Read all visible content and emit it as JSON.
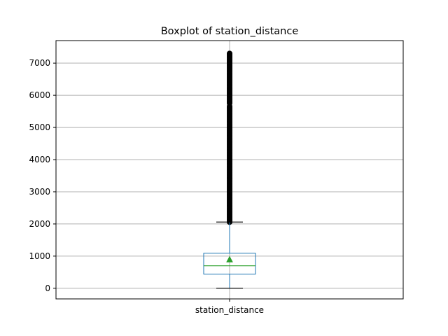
{
  "chart_data": {
    "type": "boxplot",
    "title": "Boxplot of station_distance",
    "xlabel": "",
    "ylabel": "",
    "categories": [
      "station_distance"
    ],
    "ylim": [
      -330,
      7700
    ],
    "yticks": [
      0,
      1000,
      2000,
      3000,
      4000,
      5000,
      6000,
      7000
    ],
    "grid": true,
    "box": {
      "whisker_low": 0,
      "q1": 440,
      "median": 700,
      "q3": 1090,
      "whisker_high": 2060,
      "mean": 900
    },
    "outlier_ranges": [
      [
        2040,
        5660
      ],
      [
        5740,
        7300
      ]
    ],
    "colors": {
      "box": "#1f77b4",
      "median": "#2ca02c",
      "mean": "#2ca02c",
      "whisker": "#000000",
      "outliers": "#000000",
      "grid": "#b0b0b0"
    }
  }
}
